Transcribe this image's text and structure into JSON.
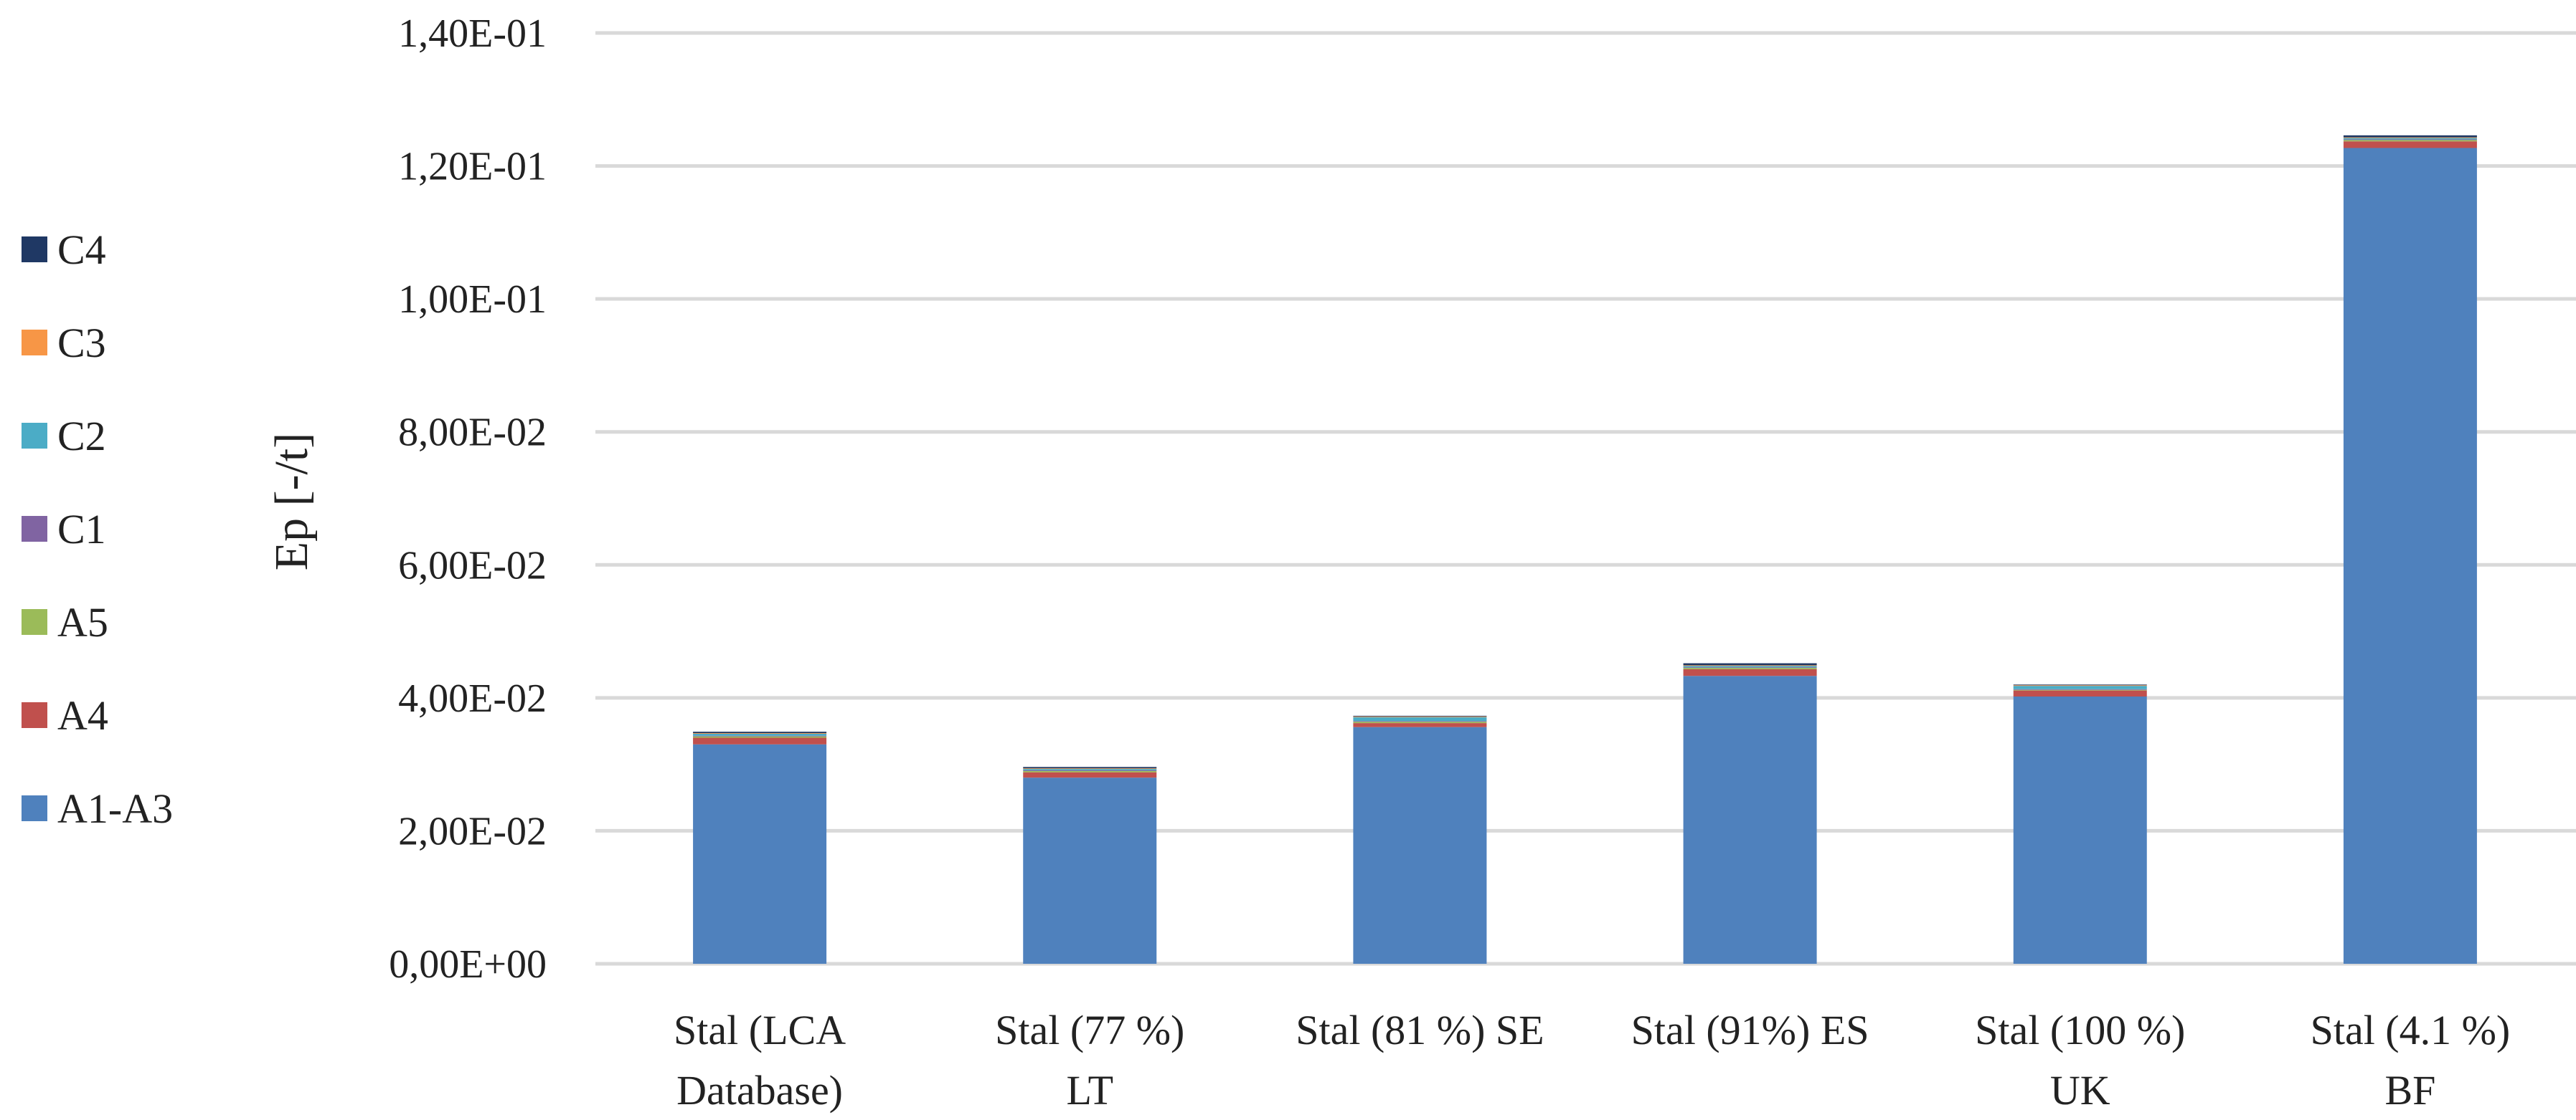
{
  "chart_data": {
    "type": "bar",
    "stacked": true,
    "title": "",
    "xlabel": "",
    "ylabel": "Ep [-/t]",
    "ylim": [
      0,
      0.14
    ],
    "yticks": [
      0,
      0.02,
      0.04,
      0.06,
      0.08,
      0.1,
      0.12,
      0.14
    ],
    "ytick_labels": [
      "0,00E+00",
      "2,00E-02",
      "4,00E-02",
      "6,00E-02",
      "8,00E-02",
      "1,00E-01",
      "1,20E-01",
      "1,40E-01"
    ],
    "grid": true,
    "legend_position": "left",
    "categories": [
      [
        "Stal (LCA",
        "Database)"
      ],
      [
        "Stal (77 %)",
        "LT"
      ],
      [
        "Stal (81 %) SE"
      ],
      [
        "Stal (91%) ES"
      ],
      [
        "Stal (100 %)",
        "UK"
      ],
      [
        "Stal (4.1 %)",
        "BF"
      ]
    ],
    "series": [
      {
        "name": "A1-A3",
        "color": "#4f81bd",
        "values": [
          0.033,
          0.028,
          0.0356,
          0.0433,
          0.0402,
          0.1227
        ]
      },
      {
        "name": "A4",
        "color": "#c0504d",
        "values": [
          0.001,
          0.0008,
          0.0006,
          0.001,
          0.0009,
          0.001
        ]
      },
      {
        "name": "A5",
        "color": "#9bbb59",
        "values": [
          0.0002,
          0.0002,
          0.0002,
          0.0002,
          0.0001,
          0.0002
        ]
      },
      {
        "name": "C1",
        "color": "#8064a2",
        "values": [
          0.0001,
          0.0001,
          0.0001,
          0.0001,
          0.0001,
          0.0001
        ]
      },
      {
        "name": "C2",
        "color": "#4bacc6",
        "values": [
          0.0003,
          0.0002,
          0.0006,
          0.0002,
          0.0005,
          0.0002
        ]
      },
      {
        "name": "C3",
        "color": "#f79646",
        "values": [
          0.0001,
          0.0001,
          0.0001,
          0.0001,
          0.0001,
          0.0001
        ]
      },
      {
        "name": "C4",
        "color": "#1f3864",
        "values": [
          0.0002,
          0.0002,
          0.0001,
          0.0003,
          0.0001,
          0.0003
        ]
      }
    ]
  }
}
